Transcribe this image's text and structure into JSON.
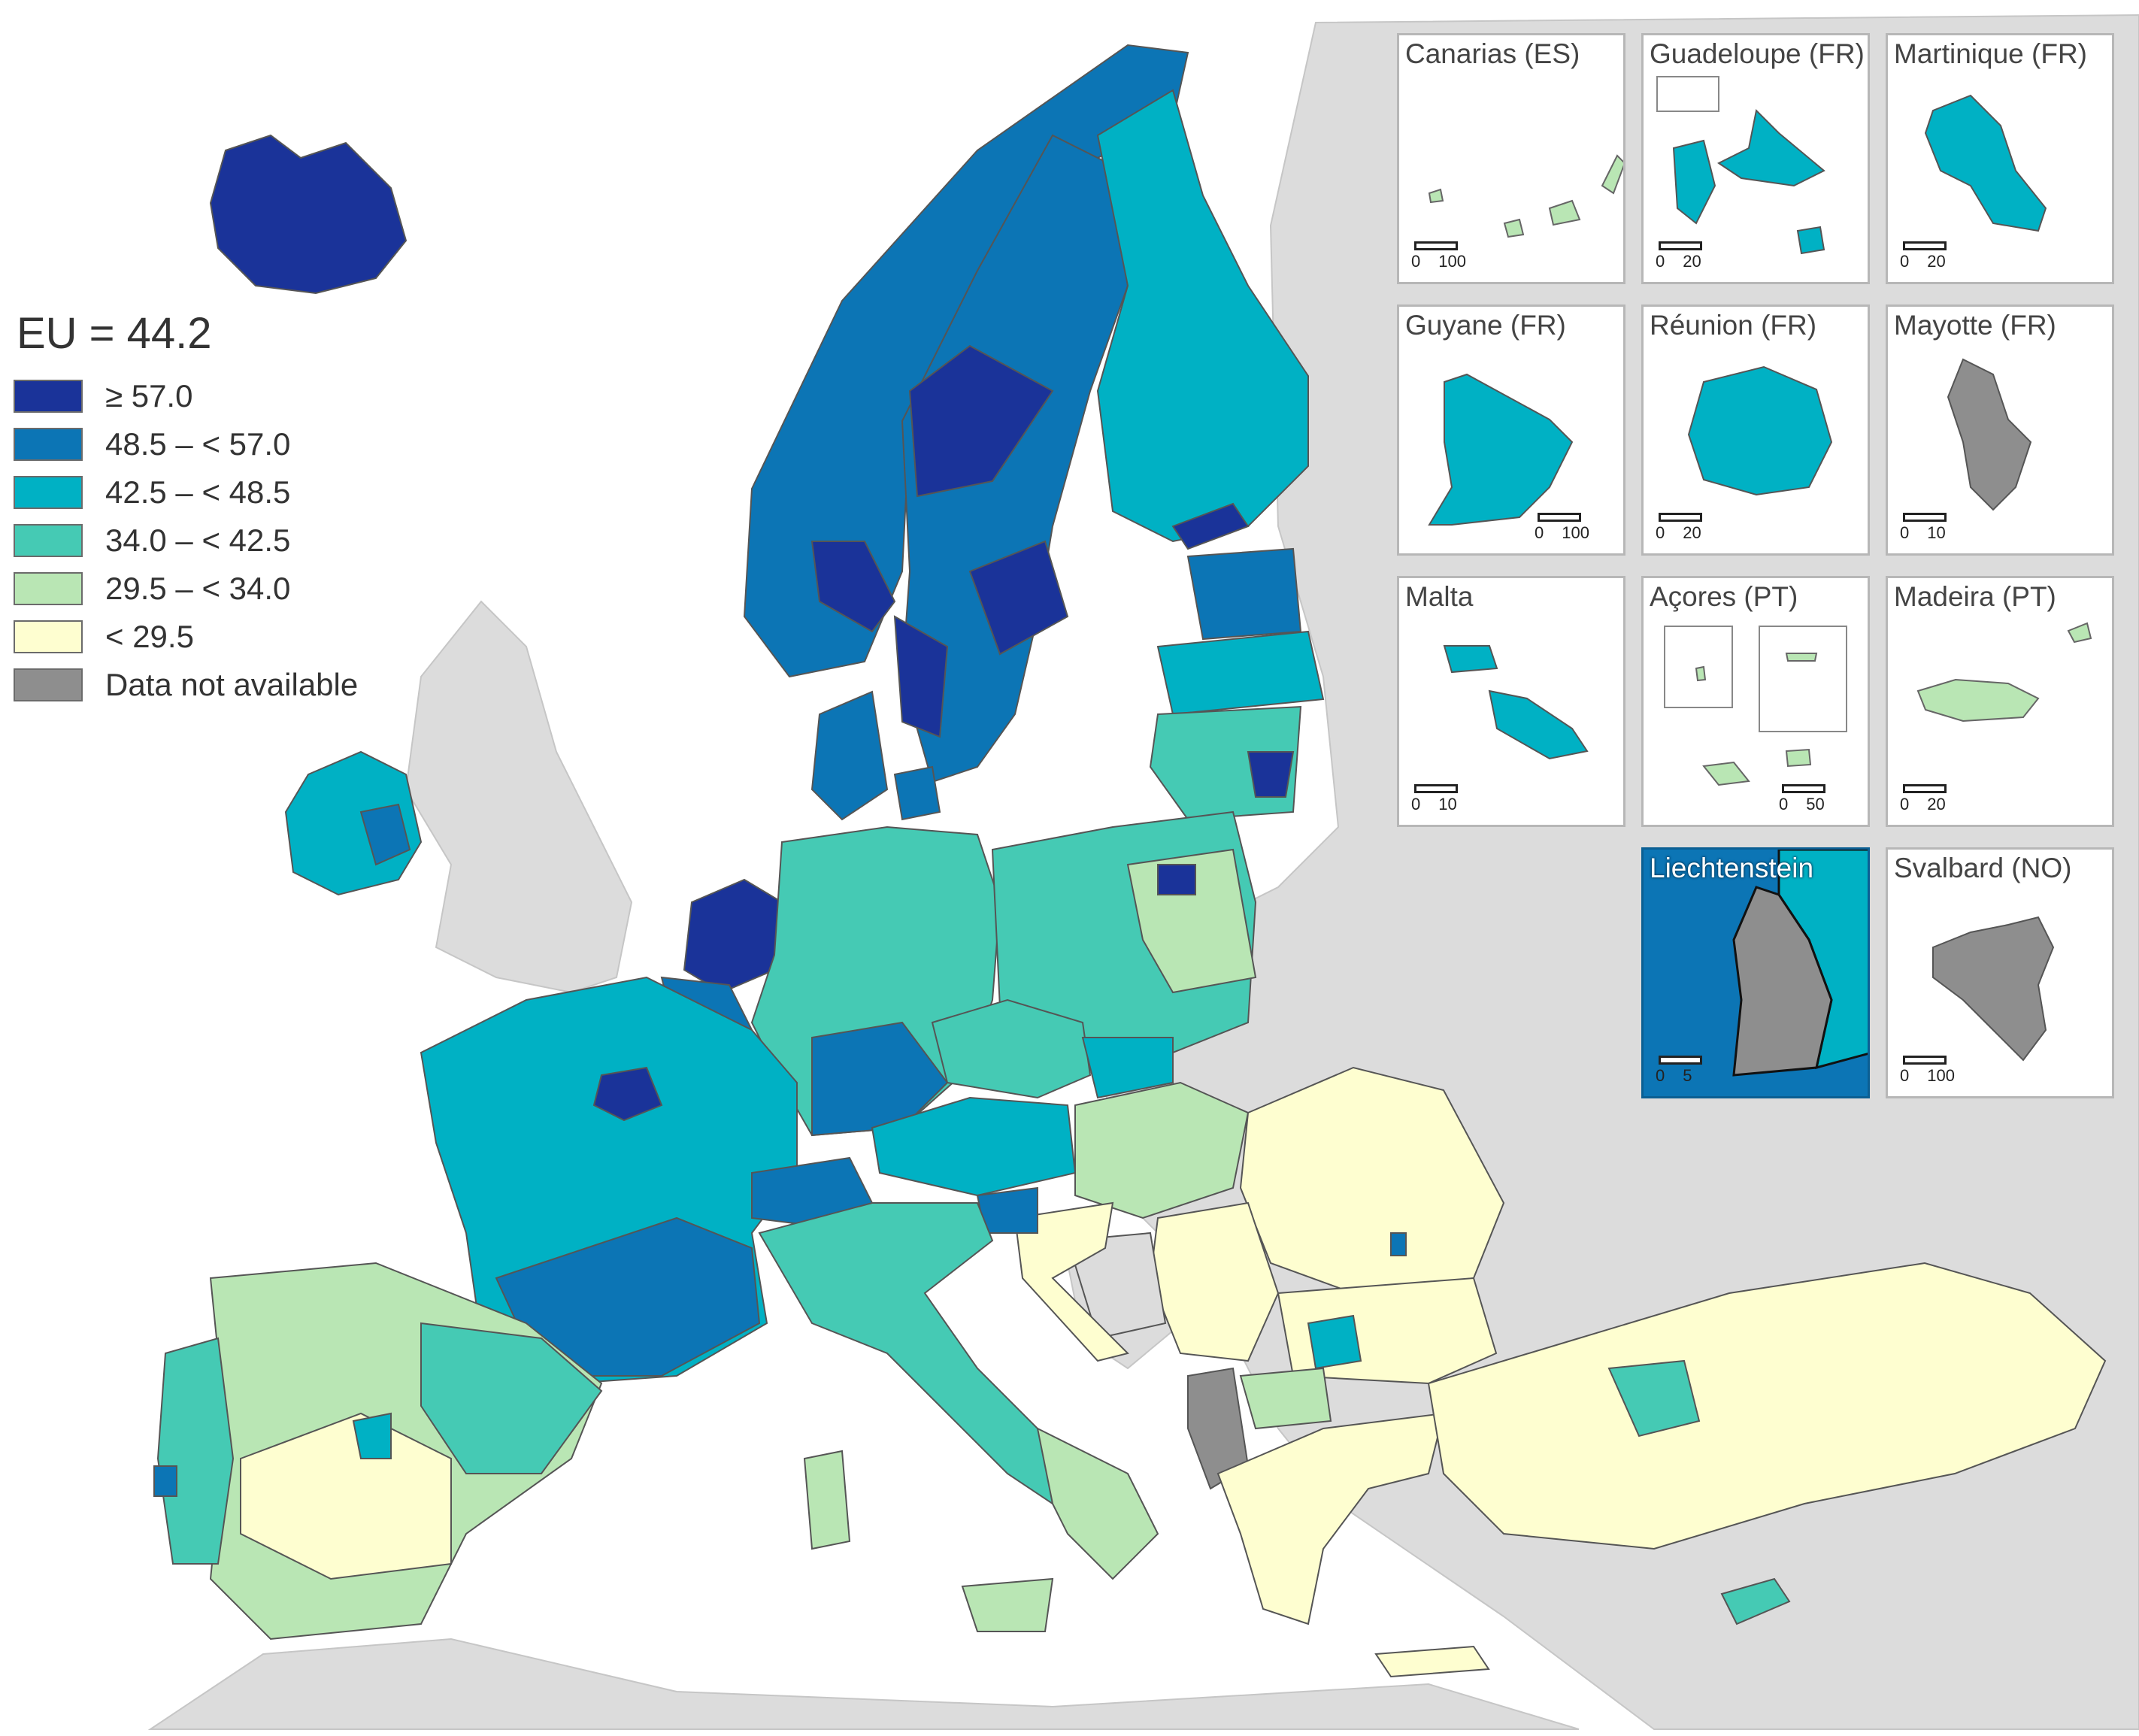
{
  "legend": {
    "title": "EU = 44.2",
    "classes": [
      {
        "label": "≥ 57.0",
        "color": "#1a3399"
      },
      {
        "label": "48.5 – < 57.0",
        "color": "#0c75b5"
      },
      {
        "label": "42.5 – < 48.5",
        "color": "#00b1c4"
      },
      {
        "label": "34.0 – < 42.5",
        "color": "#45cab4"
      },
      {
        "label": "29.5 – < 34.0",
        "color": "#b9e6b4"
      },
      {
        "label": "< 29.5",
        "color": "#fefed0"
      },
      {
        "label": "Data not available",
        "color": "#8e8e8e"
      }
    ]
  },
  "non_data_colors": {
    "sea": "#ffffff",
    "non_reporting_land": "#dcdcdc",
    "border": "#111111"
  },
  "insets": [
    {
      "title": "Canarias (ES)",
      "scale": [
        "0",
        "100"
      ]
    },
    {
      "title": "Guadeloupe (FR)",
      "scale": [
        "0",
        "20"
      ]
    },
    {
      "title": "Martinique (FR)",
      "scale": [
        "0",
        "20"
      ]
    },
    {
      "title": "Guyane (FR)",
      "scale": [
        "0",
        "100"
      ]
    },
    {
      "title": "Réunion (FR)",
      "scale": [
        "0",
        "20"
      ]
    },
    {
      "title": "Mayotte (FR)",
      "scale": [
        "0",
        "10"
      ]
    },
    {
      "title": "Malta",
      "scale": [
        "0",
        "10"
      ]
    },
    {
      "title": "Açores (PT)",
      "scale": [
        "0",
        "50"
      ]
    },
    {
      "title": "Madeira (PT)",
      "scale": [
        "0",
        "20"
      ]
    },
    {
      "title": "Liechtenstein",
      "scale": [
        "0",
        "5"
      ]
    },
    {
      "title": "Svalbard (NO)",
      "scale": [
        "0",
        "100"
      ]
    }
  ]
}
